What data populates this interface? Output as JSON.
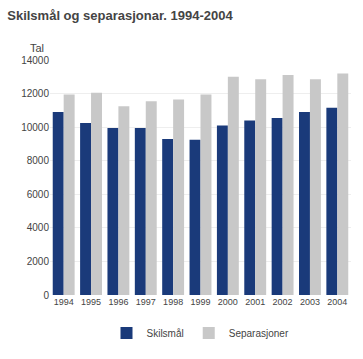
{
  "chart_data": {
    "type": "bar",
    "title": "Skilsmål og separasjonar. 1994-2004",
    "ylabel": "Tal",
    "categories": [
      "1994",
      "1995",
      "1996",
      "1997",
      "1998",
      "1999",
      "2000",
      "2001",
      "2002",
      "2003",
      "2004"
    ],
    "series": [
      {
        "name": "Skilsmål",
        "color": "#1a3a7a",
        "values": [
          10900,
          10250,
          9950,
          9950,
          9300,
          9250,
          10100,
          10400,
          10550,
          10900,
          11150
        ]
      },
      {
        "name": "Separasjoner",
        "color": "#c8c8c8",
        "values": [
          11950,
          12050,
          11250,
          11550,
          11650,
          11950,
          13000,
          12850,
          13100,
          12850,
          13200
        ]
      }
    ],
    "ylim": [
      0,
      14000
    ],
    "yticks": [
      0,
      2000,
      4000,
      6000,
      8000,
      10000,
      12000,
      14000
    ],
    "grid": true,
    "legend": "bottom"
  }
}
